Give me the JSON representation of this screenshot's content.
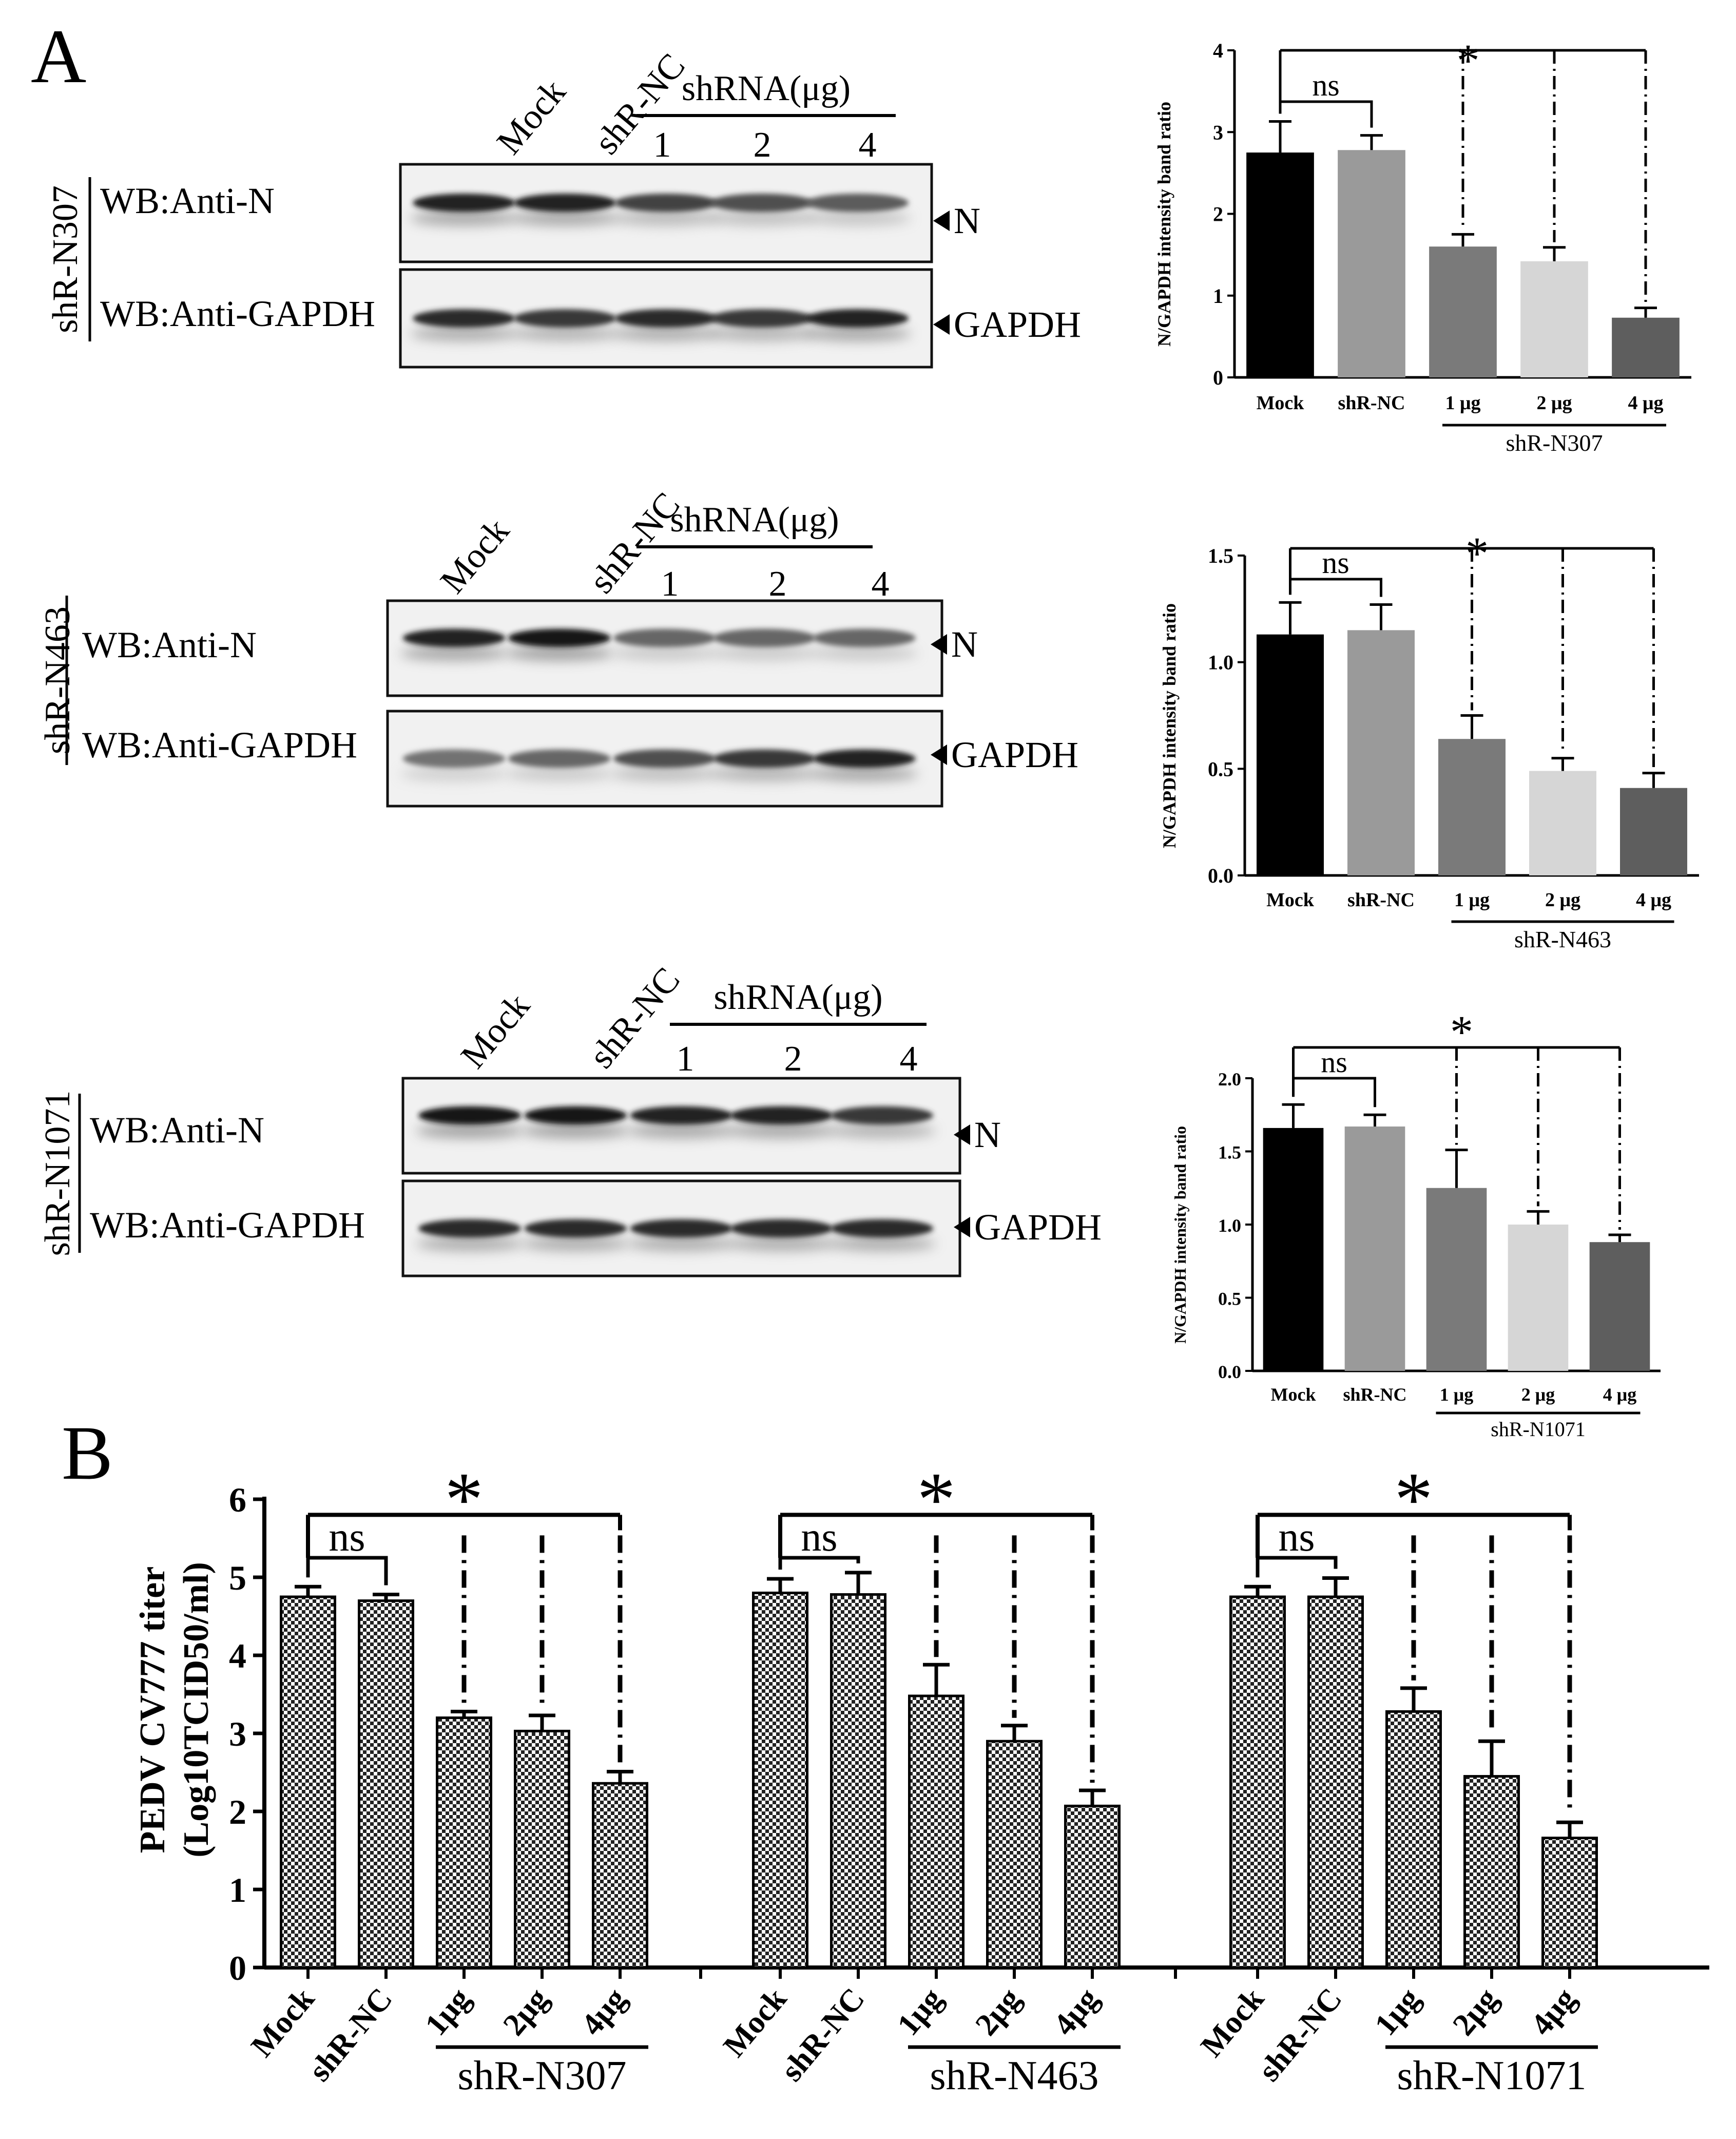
{
  "figure": {
    "panel_a_label": "A",
    "panel_b_label": "B"
  },
  "blots": [
    {
      "construct": "shR-N307",
      "lanes": [
        "Mock",
        "shR-NC",
        "1",
        "2",
        "4"
      ],
      "dose_header": "shRNA(μg)",
      "rows": [
        "WB:Anti-N",
        "WB:Anti-GAPDH"
      ],
      "arrows": [
        "N",
        "GAPDH"
      ],
      "n_band_intensity": [
        0.95,
        0.95,
        0.8,
        0.75,
        0.7
      ],
      "gapdh_band_intensity": [
        0.9,
        0.85,
        0.9,
        0.85,
        0.95
      ]
    },
    {
      "construct": "shR-N463",
      "lanes": [
        "Mock",
        "shR-NC",
        "1",
        "2",
        "4"
      ],
      "dose_header": "shRNA(μg)",
      "rows": [
        "WB:Anti-N",
        "WB:Anti-GAPDH"
      ],
      "arrows": [
        "N",
        "GAPDH"
      ],
      "n_band_intensity": [
        0.95,
        1.0,
        0.65,
        0.65,
        0.65
      ],
      "gapdh_band_intensity": [
        0.6,
        0.65,
        0.75,
        0.85,
        0.95
      ]
    },
    {
      "construct": "shR-N1071",
      "lanes": [
        "Mock",
        "shR-NC",
        "1",
        "2",
        "4"
      ],
      "dose_header": "shRNA(μg)",
      "rows": [
        "WB:Anti-N",
        "WB:Anti-GAPDH"
      ],
      "arrows": [
        "N",
        "GAPDH"
      ],
      "n_band_intensity": [
        1.0,
        1.0,
        0.95,
        0.95,
        0.85
      ],
      "gapdh_band_intensity": [
        0.9,
        0.9,
        0.9,
        0.9,
        0.9
      ]
    }
  ],
  "chart_data": [
    {
      "type": "bar",
      "panel": "A-top",
      "ylabel": "N/GAPDH intensity band ratio",
      "categories": [
        "Mock",
        "shR-NC",
        "1 μg",
        "2 μg",
        "4 μg"
      ],
      "group_label": "shR-N307",
      "values": [
        2.75,
        2.78,
        1.6,
        1.42,
        0.73
      ],
      "errors": [
        0.38,
        0.18,
        0.15,
        0.17,
        0.12
      ],
      "ylim": [
        0,
        4
      ],
      "yticks": [
        "0",
        "1",
        "2",
        "3",
        "4"
      ],
      "ytick_values": [
        0,
        1,
        2,
        3,
        4
      ],
      "colors": [
        "#000000",
        "#9a9a9a",
        "#7a7a7a",
        "#d6d6d6",
        "#5e5e5e"
      ],
      "ns_label": "ns",
      "sig_label": "*"
    },
    {
      "type": "bar",
      "panel": "A-middle",
      "ylabel": "N/GAPDH intensity band ratio",
      "categories": [
        "Mock",
        "shR-NC",
        "1 μg",
        "2 μg",
        "4 μg"
      ],
      "group_label": "shR-N463",
      "values": [
        1.13,
        1.15,
        0.64,
        0.49,
        0.41
      ],
      "errors": [
        0.15,
        0.12,
        0.11,
        0.06,
        0.07
      ],
      "ylim": [
        0,
        1.5
      ],
      "yticks": [
        "0.0",
        "0.5",
        "1.0",
        "1.5"
      ],
      "ytick_values": [
        0,
        0.5,
        1.0,
        1.5
      ],
      "colors": [
        "#000000",
        "#9a9a9a",
        "#7a7a7a",
        "#d6d6d6",
        "#5e5e5e"
      ],
      "ns_label": "ns",
      "sig_label": "*"
    },
    {
      "type": "bar",
      "panel": "A-bottom",
      "ylabel": "N/GAPDH intensity band ratio",
      "categories": [
        "Mock",
        "shR-NC",
        "1 μg",
        "2 μg",
        "4 μg"
      ],
      "group_label": "shR-N1071",
      "values": [
        1.66,
        1.67,
        1.25,
        1.0,
        0.88
      ],
      "errors": [
        0.16,
        0.08,
        0.26,
        0.09,
        0.05
      ],
      "ylim": [
        0,
        2
      ],
      "yticks": [
        "0.0",
        "0.5",
        "1.0",
        "1.5",
        "2.0"
      ],
      "ytick_values": [
        0,
        0.5,
        1.0,
        1.5,
        2.0
      ],
      "colors": [
        "#000000",
        "#9a9a9a",
        "#7a7a7a",
        "#d6d6d6",
        "#5e5e5e"
      ],
      "ns_label": "ns",
      "sig_label": "*"
    },
    {
      "type": "bar",
      "panel": "B",
      "ylabel_line1": "PEDV CV777 titer",
      "ylabel_line2": "(Log10TCID50/ml)",
      "ylim": [
        0,
        6
      ],
      "yticks": [
        "0",
        "1",
        "2",
        "3",
        "4",
        "5",
        "6"
      ],
      "ytick_values": [
        0,
        1,
        2,
        3,
        4,
        5,
        6
      ],
      "categories": [
        "Mock",
        "shR-NC",
        "1μg",
        "2μg",
        "4μg"
      ],
      "ns_label": "ns",
      "sig_label": "*",
      "series": [
        {
          "name": "shR-N307",
          "values": [
            4.75,
            4.7,
            3.2,
            3.03,
            2.36
          ],
          "errors": [
            0.13,
            0.08,
            0.08,
            0.2,
            0.15
          ]
        },
        {
          "name": "shR-N463",
          "values": [
            4.8,
            4.78,
            3.48,
            2.9,
            2.07
          ],
          "errors": [
            0.18,
            0.28,
            0.4,
            0.2,
            0.2
          ]
        },
        {
          "name": "shR-N1071",
          "values": [
            4.75,
            4.75,
            3.28,
            2.45,
            1.66
          ],
          "errors": [
            0.13,
            0.24,
            0.3,
            0.45,
            0.2
          ]
        }
      ]
    }
  ]
}
